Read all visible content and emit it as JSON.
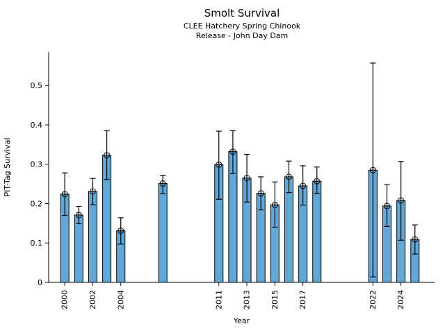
{
  "chart_data": {
    "type": "bar",
    "title": "Smolt Survival",
    "subtitle_line1": "CLEE Hatchery Spring Chinook",
    "subtitle_line2": "Release - John Day Dam",
    "xlabel": "Year",
    "ylabel": "PIT-Tag Survival",
    "categories": [
      2000,
      2001,
      2002,
      2003,
      2004,
      2007,
      2011,
      2012,
      2013,
      2014,
      2015,
      2016,
      2017,
      2018,
      2022,
      2023,
      2024,
      2025
    ],
    "values": [
      0.224,
      0.171,
      0.231,
      0.323,
      0.131,
      0.251,
      0.299,
      0.332,
      0.265,
      0.226,
      0.197,
      0.268,
      0.245,
      0.257,
      0.285,
      0.194,
      0.208,
      0.109
    ],
    "error_low": [
      0.17,
      0.149,
      0.197,
      0.261,
      0.097,
      0.225,
      0.211,
      0.276,
      0.204,
      0.184,
      0.14,
      0.228,
      0.196,
      0.226,
      0.014,
      0.142,
      0.107,
      0.072
    ],
    "error_high": [
      0.278,
      0.193,
      0.264,
      0.385,
      0.164,
      0.272,
      0.384,
      0.385,
      0.325,
      0.268,
      0.255,
      0.308,
      0.296,
      0.293,
      0.557,
      0.248,
      0.307,
      0.146
    ],
    "xtick_values": [
      2000,
      2002,
      2004,
      2011,
      2013,
      2015,
      2017,
      2022,
      2024
    ],
    "xtick_labels": [
      "2000",
      "2002",
      "2004",
      "2011",
      "2013",
      "2015",
      "2017",
      "2022",
      "2024"
    ],
    "ytick_values": [
      0,
      0.1,
      0.2,
      0.3,
      0.4,
      0.5
    ],
    "ytick_labels": [
      "0",
      "0.1",
      "0.2",
      "0.3",
      "0.4",
      "0.5"
    ],
    "xlim": [
      1998.85,
      2026.4
    ],
    "ylim": [
      0,
      0.585
    ],
    "grid": false,
    "legend": null,
    "bar_color": "#63a8d5",
    "bar_edge_color": "#000000",
    "errorbar_color": "#000000",
    "axis_color": "#000000",
    "marker": "circle-plus"
  }
}
